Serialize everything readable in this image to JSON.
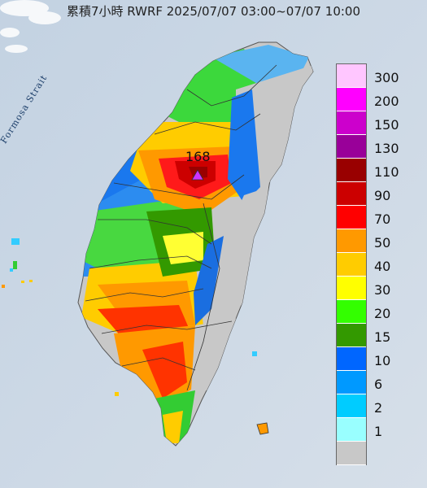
{
  "title": "累積7小時 RWRF 2025/07/07 03:00~07/07 10:00",
  "map_labels": {
    "strait": "Formosa Strait",
    "max_value": "168"
  },
  "legend": {
    "items": [
      {
        "label": "300",
        "color": "#ffc6ff"
      },
      {
        "label": "200",
        "color": "#ff00ff"
      },
      {
        "label": "150",
        "color": "#cc00cc"
      },
      {
        "label": "130",
        "color": "#990099"
      },
      {
        "label": "110",
        "color": "#990000"
      },
      {
        "label": "90",
        "color": "#cc0000"
      },
      {
        "label": "70",
        "color": "#ff0000"
      },
      {
        "label": "50",
        "color": "#ff9900"
      },
      {
        "label": "40",
        "color": "#ffcc00"
      },
      {
        "label": "30",
        "color": "#ffff00"
      },
      {
        "label": "20",
        "color": "#33ff00"
      },
      {
        "label": "15",
        "color": "#339900"
      },
      {
        "label": "10",
        "color": "#0066ff"
      },
      {
        "label": "6",
        "color": "#0099ff"
      },
      {
        "label": "2",
        "color": "#00ccff"
      },
      {
        "label": "1",
        "color": "#99ffff"
      },
      {
        "label": "",
        "color": "#c8c8c8"
      }
    ]
  },
  "colors": {
    "sea": "#cbd7e4",
    "land": "#cfd3d6",
    "no_rain": "#c8c8c8",
    "max_marker": "#cc33ff"
  }
}
